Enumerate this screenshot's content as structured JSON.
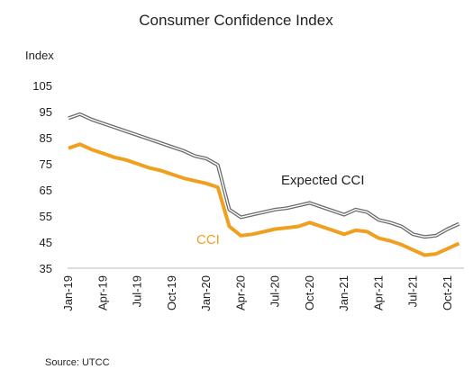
{
  "chart_data": {
    "type": "line",
    "title": "Consumer Confidence Index",
    "ylabel": "Index",
    "source": "Source:  UTCC",
    "ylim": [
      35,
      105
    ],
    "yticks": [
      35,
      45,
      55,
      65,
      75,
      85,
      95,
      105
    ],
    "grid": false,
    "legend": "inline labels",
    "x_start": "Jan-19",
    "x_tick_labels": [
      "Jan-19",
      "Apr-19",
      "Jul-19",
      "Oct-19",
      "Jan-20",
      "Apr-20",
      "Jul-20",
      "Oct-20",
      "Jan-21",
      "Apr-21",
      "Jul-21",
      "Oct-21"
    ],
    "x": [
      "Jan-19",
      "Feb-19",
      "Mar-19",
      "Apr-19",
      "May-19",
      "Jun-19",
      "Jul-19",
      "Aug-19",
      "Sep-19",
      "Oct-19",
      "Nov-19",
      "Dec-19",
      "Jan-20",
      "Feb-20",
      "Mar-20",
      "Apr-20",
      "May-20",
      "Jun-20",
      "Jul-20",
      "Aug-20",
      "Sep-20",
      "Oct-20",
      "Nov-20",
      "Dec-20",
      "Jan-21",
      "Feb-21",
      "Mar-21",
      "Apr-21",
      "May-21",
      "Jun-21",
      "Jul-21",
      "Aug-21",
      "Sep-21",
      "Oct-21",
      "Nov-21"
    ],
    "series": [
      {
        "name": "Expected CCI",
        "color": "#6b6b6b",
        "values": [
          92.5,
          94.0,
          92.0,
          90.5,
          89.0,
          87.5,
          86.0,
          84.5,
          83.0,
          81.5,
          80.0,
          78.0,
          77.0,
          74.5,
          57.5,
          54.5,
          55.5,
          56.5,
          57.5,
          58.0,
          59.0,
          60.0,
          58.5,
          57.0,
          55.5,
          57.5,
          56.5,
          53.5,
          52.5,
          51.0,
          48.0,
          47.0,
          47.5,
          50.0,
          52.0
        ]
      },
      {
        "name": "CCI",
        "color": "#f0a020",
        "values": [
          81.0,
          82.5,
          80.5,
          79.0,
          77.5,
          76.5,
          75.0,
          73.5,
          72.5,
          71.0,
          69.5,
          68.5,
          67.5,
          66.0,
          51.0,
          47.5,
          48.0,
          49.0,
          50.0,
          50.5,
          51.0,
          52.5,
          51.0,
          49.5,
          48.0,
          49.5,
          49.0,
          46.5,
          45.5,
          44.0,
          42.0,
          40.0,
          40.5,
          42.5,
          44.5
        ]
      }
    ]
  }
}
